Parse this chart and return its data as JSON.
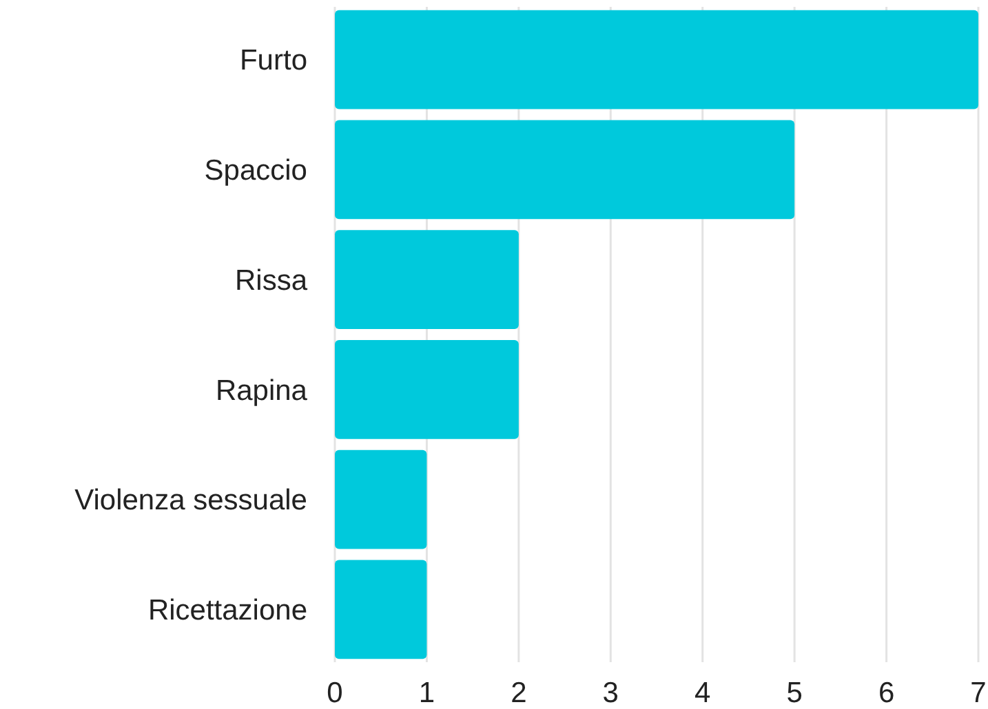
{
  "chart_data": {
    "type": "bar",
    "orientation": "horizontal",
    "categories": [
      "Furto",
      "Spaccio",
      "Rissa",
      "Rapina",
      "Violenza sessuale",
      "Ricettazione"
    ],
    "values": [
      7,
      5,
      2,
      2,
      1,
      1
    ],
    "color": "#00c9dc",
    "xlim": [
      0,
      7
    ],
    "xticks": [
      0,
      1,
      2,
      3,
      4,
      5,
      6,
      7
    ],
    "grid": "x"
  }
}
